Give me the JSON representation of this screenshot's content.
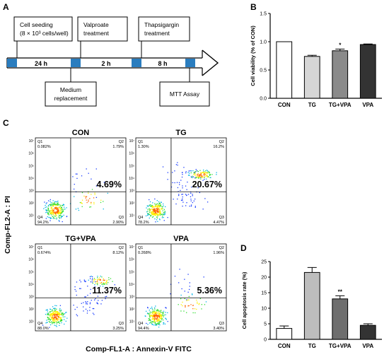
{
  "panel_a": {
    "letter": "A",
    "top_boxes": [
      {
        "line1": "Cell seeding",
        "line2": "(8 × 10³ cells/well)"
      },
      {
        "line1": "Valproate",
        "line2": "treatment"
      },
      {
        "line1": "Thapsigargin",
        "line2": "treatment"
      }
    ],
    "bottom_boxes": [
      {
        "line1": "Medium",
        "line2": "replacement"
      },
      {
        "line1": "MTT Assay",
        "line2": ""
      }
    ],
    "times": [
      "24 h",
      "2 h",
      "8 h"
    ],
    "colors": {
      "block": "#2a7dbf",
      "line": "#000000"
    }
  },
  "panel_c": {
    "letter": "C",
    "y_axis_label": "Comp-FL2-A : PI",
    "x_axis_label": "Comp-FL1-A : Annexin-V FITC",
    "decade_labels": [
      "10⁷",
      "10⁶",
      "10⁵",
      "10⁴",
      "10³",
      "10²",
      "10¹"
    ],
    "plots": [
      {
        "title": "CON",
        "q1": "Q1",
        "q1v": "0.082%",
        "q2": "Q2",
        "q2v": "1.79%",
        "q3": "Q3",
        "q3v": "2.90%",
        "q4": "Q4",
        "q4v": "94.2%",
        "total": "4.69%"
      },
      {
        "title": "TG",
        "q1": "Q1",
        "q1v": "1.30%",
        "q2": "Q2",
        "q2v": "16.2%",
        "q3": "Q3",
        "q3v": "4.47%",
        "q4": "Q4",
        "q4v": "78.2%",
        "total": "20.67%"
      },
      {
        "title": "TG+VPA",
        "q1": "Q1",
        "q1v": "0.674%",
        "q2": "Q2",
        "q2v": "8.12%",
        "q3": "Q3",
        "q3v": "3.25%",
        "q4": "Q4",
        "q4v": "88.0%",
        "total": "11.37%"
      },
      {
        "title": "VPA",
        "q1": "Q1",
        "q1v": "0.268%",
        "q2": "Q2",
        "q2v": "1.96%",
        "q3": "Q3",
        "q3v": "3.40%",
        "q4": "Q4",
        "q4v": "94.4%",
        "total": "5.36%"
      }
    ]
  },
  "chart_data": [
    {
      "panel": "B",
      "type": "bar",
      "categories": [
        "CON",
        "TG",
        "TG+VPA",
        "VPA"
      ],
      "values": [
        1.0,
        0.74,
        0.84,
        0.95
      ],
      "errors": [
        0.0,
        0.02,
        0.03,
        0.01
      ],
      "colors": [
        "#ffffff",
        "#d6d6d6",
        "#8a8a8a",
        "#333333"
      ],
      "significance": [
        "",
        "",
        "*",
        ""
      ],
      "title": "",
      "xlabel": "",
      "ylabel": "Cell viability (% of CON)",
      "ylim": [
        0,
        1.5
      ],
      "yticks": [
        "0.0",
        "0.5",
        "1.0",
        "1.5"
      ]
    },
    {
      "panel": "D",
      "type": "bar",
      "categories": [
        "CON",
        "TG",
        "TG+VPA",
        "VPA"
      ],
      "values": [
        3.5,
        21.5,
        13.0,
        4.5
      ],
      "errors": [
        0.8,
        1.6,
        1.0,
        0.5
      ],
      "colors": [
        "#ffffff",
        "#bdbdbd",
        "#6e6e6e",
        "#333333"
      ],
      "significance": [
        "",
        "",
        "**",
        ""
      ],
      "title": "",
      "xlabel": "",
      "ylabel": "Cell apoptosis rate  (%)",
      "ylim": [
        0,
        25
      ],
      "yticks": [
        "0",
        "5",
        "10",
        "15",
        "20",
        "25"
      ]
    }
  ]
}
